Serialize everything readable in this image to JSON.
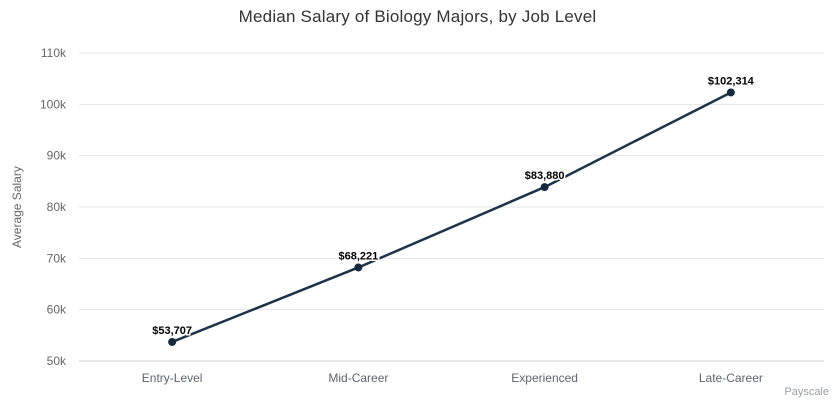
{
  "chart": {
    "watermark": "Payscale"
  },
  "chart_data": {
    "type": "line",
    "title": "Median Salary of Biology Majors, by Job Level",
    "categories": [
      "Entry-Level",
      "Mid-Career",
      "Experienced",
      "Late-Career"
    ],
    "values": [
      53707,
      68221,
      83880,
      102314
    ],
    "value_labels": [
      "$53,707",
      "$68,221",
      "$83,880",
      "$102,314"
    ],
    "xlabel": "",
    "ylabel": "Average Salary",
    "ylim": [
      50000,
      110000
    ],
    "ytick_step": 10000,
    "ytick_labels": [
      "50k",
      "60k",
      "70k",
      "80k",
      "90k",
      "100k",
      "110k"
    ],
    "grid": true,
    "legend": false,
    "colors": {
      "line": "#1c3349",
      "marker": "#16293d",
      "grid": "#e6e6e6",
      "axis_line": "#ccd1d9",
      "tick_label": "#666666",
      "category_label": "#5a6672",
      "title": "#333333",
      "data_label": "#000000",
      "watermark": "#9aa0a6"
    }
  }
}
